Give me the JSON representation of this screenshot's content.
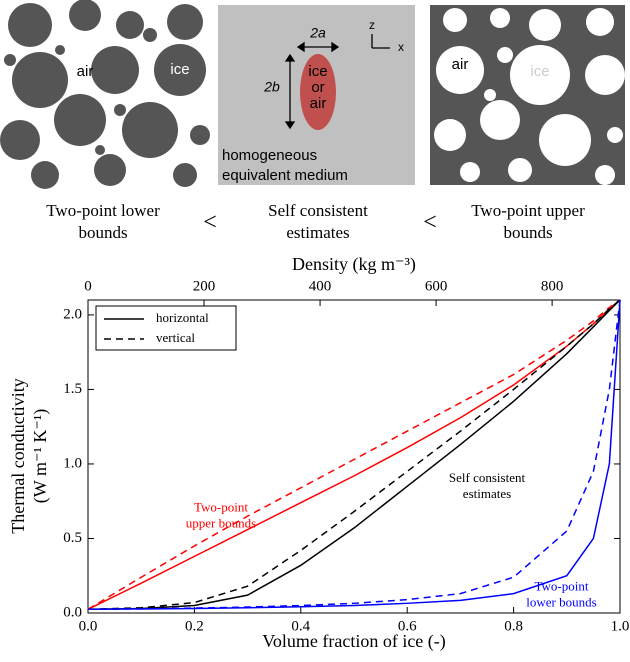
{
  "panels": {
    "left": {
      "air": "air",
      "ice": "ice"
    },
    "middle": {
      "width": "2a",
      "height": "2b",
      "inclusion": [
        "ice",
        "or",
        "air"
      ],
      "medium": [
        "homogeneous",
        "equivalent medium"
      ],
      "z_axis": "z",
      "x_axis": "x"
    },
    "right": {
      "air": "air",
      "ice": "ice"
    },
    "captions": {
      "lower": [
        "Two-point lower",
        "bounds"
      ],
      "lt1": "<",
      "self": [
        "Self consistent",
        "estimates"
      ],
      "lt2": "<",
      "upper": [
        "Two-point upper",
        "bounds"
      ]
    }
  },
  "chart_data": {
    "type": "line",
    "xlabel": "Volume fraction of ice (-)",
    "x2label": "Density (kg m⁻³)",
    "ylabel": [
      "Thermal conductivity",
      "(W m⁻¹ K⁻¹)"
    ],
    "x": [
      0,
      0.1,
      0.2,
      0.3,
      0.4,
      0.5,
      0.6,
      0.7,
      0.8,
      0.9,
      0.95,
      0.98,
      1.0
    ],
    "series": [
      {
        "color": "#ff0000",
        "dash": "solid",
        "values": [
          0.025,
          0.2,
          0.38,
          0.56,
          0.74,
          0.92,
          1.11,
          1.31,
          1.53,
          1.79,
          1.94,
          2.04,
          2.1
        ]
      },
      {
        "color": "#ff0000",
        "dash": "dashed",
        "values": [
          0.025,
          0.24,
          0.45,
          0.65,
          0.84,
          1.03,
          1.22,
          1.41,
          1.6,
          1.83,
          1.96,
          2.05,
          2.1
        ]
      },
      {
        "color": "#000000",
        "dash": "solid",
        "values": [
          0.025,
          0.03,
          0.05,
          0.12,
          0.32,
          0.57,
          0.85,
          1.13,
          1.42,
          1.74,
          1.92,
          2.03,
          2.1
        ]
      },
      {
        "color": "#000000",
        "dash": "dashed",
        "values": [
          0.025,
          0.035,
          0.07,
          0.18,
          0.42,
          0.68,
          0.95,
          1.22,
          1.5,
          1.79,
          1.94,
          2.04,
          2.1
        ]
      },
      {
        "color": "#0000ff",
        "dash": "solid",
        "values": [
          0.025,
          0.027,
          0.03,
          0.035,
          0.042,
          0.05,
          0.065,
          0.085,
          0.13,
          0.25,
          0.5,
          1.0,
          2.1
        ]
      },
      {
        "color": "#0000ff",
        "dash": "dashed",
        "values": [
          0.025,
          0.028,
          0.033,
          0.04,
          0.05,
          0.065,
          0.09,
          0.13,
          0.24,
          0.55,
          0.95,
          1.5,
          2.1
        ]
      }
    ],
    "legend": [
      {
        "label": "horizontal",
        "dash": "solid"
      },
      {
        "label": "vertical",
        "dash": "dashed"
      }
    ],
    "legend_position": "upper left",
    "annotations": [
      {
        "lines": [
          "Two-point",
          "upper bounds"
        ],
        "color": "#ff0000",
        "x": 0.25,
        "y": 0.7
      },
      {
        "lines": [
          "Self consistent",
          "estimates"
        ],
        "color": "#000000",
        "x": 0.75,
        "y": 0.9
      },
      {
        "lines": [
          "Two-point",
          "lower bounds"
        ],
        "color": "#0000ff",
        "x": 0.89,
        "y": 0.17
      }
    ],
    "xlim": [
      0,
      1
    ],
    "xticks": [
      {
        "value": 0,
        "label": "0.0"
      },
      {
        "value": 0.2,
        "label": "0.2"
      },
      {
        "value": 0.4,
        "label": "0.4"
      },
      {
        "value": 0.6,
        "label": "0.6"
      },
      {
        "value": 0.8,
        "label": "0.8"
      },
      {
        "value": 1,
        "label": "1.0"
      }
    ],
    "x2lim": [
      0,
      917
    ],
    "x2ticks": [
      0,
      200,
      400,
      600,
      800
    ],
    "ylim": [
      0,
      2.1
    ],
    "yticks": [
      {
        "value": 0,
        "label": "0.0"
      },
      {
        "value": 0.5,
        "label": "0.5"
      },
      {
        "value": 1,
        "label": "1.0"
      },
      {
        "value": 1.5,
        "label": "1.5"
      },
      {
        "value": 2,
        "label": "2.0"
      }
    ]
  }
}
